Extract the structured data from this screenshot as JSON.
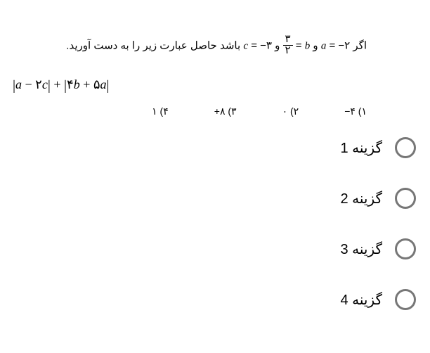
{
  "question": {
    "prefix": "اگر",
    "a_var": "a",
    "a_eq": " = −۲",
    "and1": " و ",
    "b_var": "b",
    "b_eq": " = ",
    "frac_num": "۳",
    "frac_den": "۲",
    "and2": "و ",
    "c_var": "c",
    "c_eq": " = −۳",
    "suffix": " باشد حاصل عبارت زیر را به دست آورید."
  },
  "expression": {
    "text": "|a − ۲c| + |۴b + ۵a|"
  },
  "choices": {
    "c1": "۱) ۴−",
    "c2": "۲) ۰",
    "c3": "۳) ۸+",
    "c4": "۴) ۱"
  },
  "options": {
    "o1": "گزینه 1",
    "o2": "گزینه 2",
    "o3": "گزینه 3",
    "o4": "گزینه 4"
  },
  "colors": {
    "radio_border": "#777777",
    "text": "#000000",
    "background": "#ffffff"
  }
}
